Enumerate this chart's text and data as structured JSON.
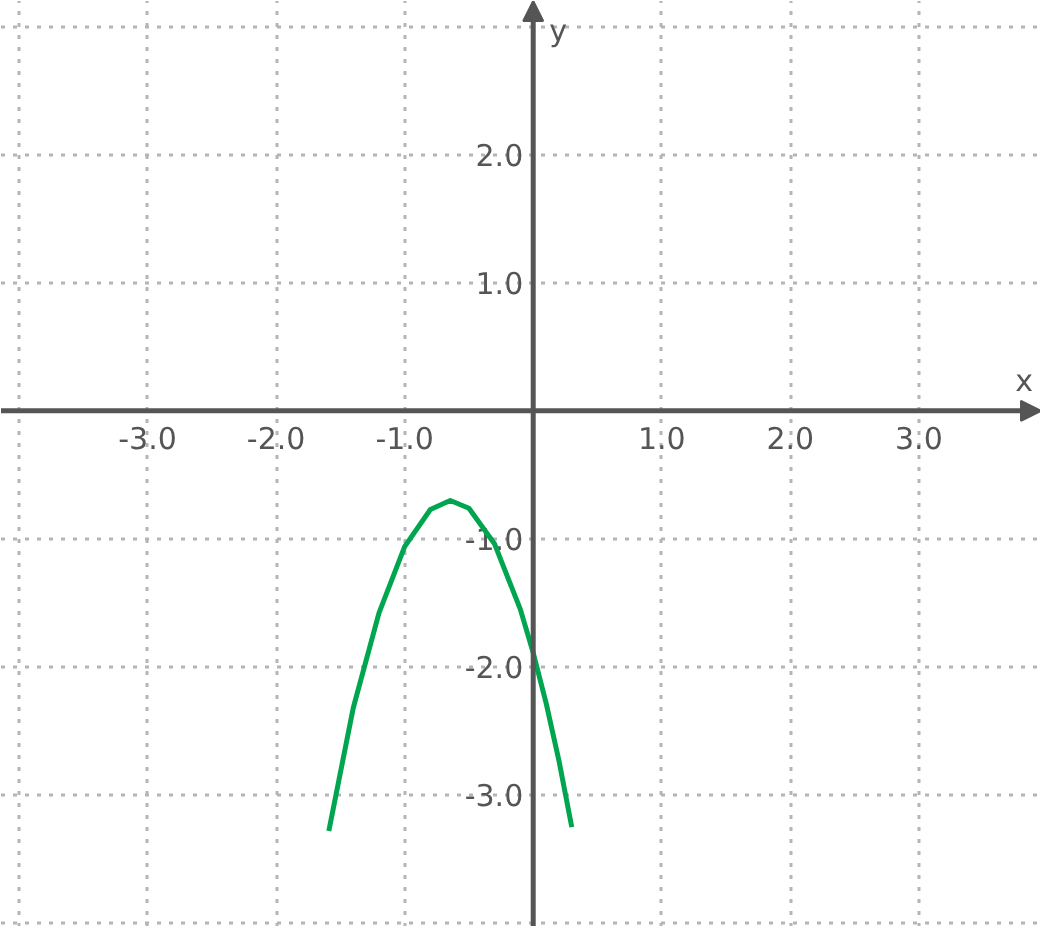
{
  "chart_data": {
    "type": "line",
    "xlabel": "x",
    "ylabel": "y",
    "xlim": [
      -4.14,
      3.95
    ],
    "ylim": [
      -4.03,
      3.2
    ],
    "xticks": [
      {
        "value": -4,
        "label": null
      },
      {
        "value": -3,
        "label": "-3.0"
      },
      {
        "value": -2,
        "label": "-2.0"
      },
      {
        "value": -1,
        "label": "-1.0"
      },
      {
        "value": 1,
        "label": "1.0"
      },
      {
        "value": 2,
        "label": "2.0"
      },
      {
        "value": 3,
        "label": "3.0"
      }
    ],
    "yticks": [
      {
        "value": -4,
        "label": null
      },
      {
        "value": -3,
        "label": "-3.0"
      },
      {
        "value": -2,
        "label": "-2.0"
      },
      {
        "value": -1,
        "label": "-1.0"
      },
      {
        "value": 1,
        "label": "1.0"
      },
      {
        "value": 2,
        "label": "2.0"
      },
      {
        "value": 3,
        "label": null
      }
    ],
    "grid": true,
    "line_style": "solid",
    "marker": "none",
    "series": [
      {
        "color": "#00a550",
        "x": [
          -1.59,
          -1.4,
          -1.2,
          -1.0,
          -0.8,
          -0.645,
          -0.5,
          -0.3,
          -0.1,
          0.0,
          0.1,
          0.2,
          0.3
        ],
        "values": [
          -3.28,
          -2.32,
          -1.58,
          -1.06,
          -0.77,
          -0.7,
          -0.76,
          -1.04,
          -1.55,
          -1.89,
          -2.28,
          -2.73,
          -3.25
        ]
      }
    ]
  }
}
